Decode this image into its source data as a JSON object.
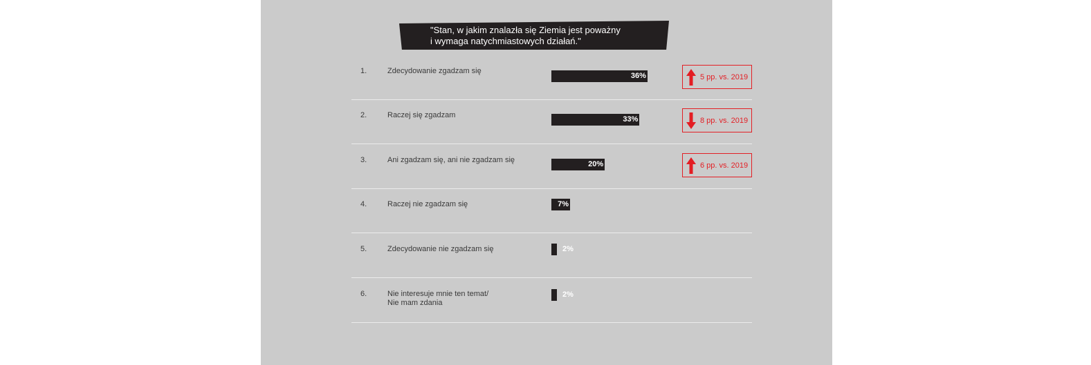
{
  "title": "\"Stan, w jakim znalazła się Ziemia jest poważny\ni wymaga natychmiastowych działań.\"",
  "colors": {
    "background": "#cbcbcb",
    "bar": "#231f20",
    "accent": "#e31e24",
    "value_text": "#ffffff"
  },
  "chart_data": {
    "type": "bar",
    "orientation": "horizontal",
    "title": "\"Stan, w jakim znalazła się Ziemia jest poważny i wymaga natychmiastowych działań.\"",
    "categories": [
      "Zdecydowanie zgadzam się",
      "Raczej się zgadzam",
      "Ani zgadzam się, ani nie zgadzam się",
      "Raczej nie zgadzam się",
      "Zdecydowanie nie zgadzam się",
      "Nie interesuje mnie ten temat/ Nie mam zdania"
    ],
    "values": [
      36,
      33,
      20,
      7,
      2,
      2
    ],
    "unit": "%",
    "xlim": [
      0,
      40
    ],
    "grid": false
  },
  "rows": [
    {
      "num": "1.",
      "label": "Zdecydowanie zgadzam się",
      "value_label": "36%",
      "change": {
        "direction": "up",
        "icon": "arrow-up-icon",
        "text": "5 pp. vs. 2019"
      }
    },
    {
      "num": "2.",
      "label": "Raczej się zgadzam",
      "value_label": "33%",
      "change": {
        "direction": "down",
        "icon": "arrow-down-icon",
        "text": "8 pp. vs. 2019"
      }
    },
    {
      "num": "3.",
      "label": "Ani zgadzam się, ani nie zgadzam się",
      "value_label": "20%",
      "change": {
        "direction": "up",
        "icon": "arrow-up-icon",
        "text": "6 pp. vs. 2019"
      }
    },
    {
      "num": "4.",
      "label": "Raczej nie zgadzam się",
      "value_label": "7%",
      "change": null
    },
    {
      "num": "5.",
      "label": "Zdecydowanie nie zgadzam się",
      "value_label": "2%",
      "change": null
    },
    {
      "num": "6.",
      "label": "Nie interesuje mnie ten temat/\nNie mam zdania",
      "value_label": "2%",
      "change": null
    }
  ]
}
